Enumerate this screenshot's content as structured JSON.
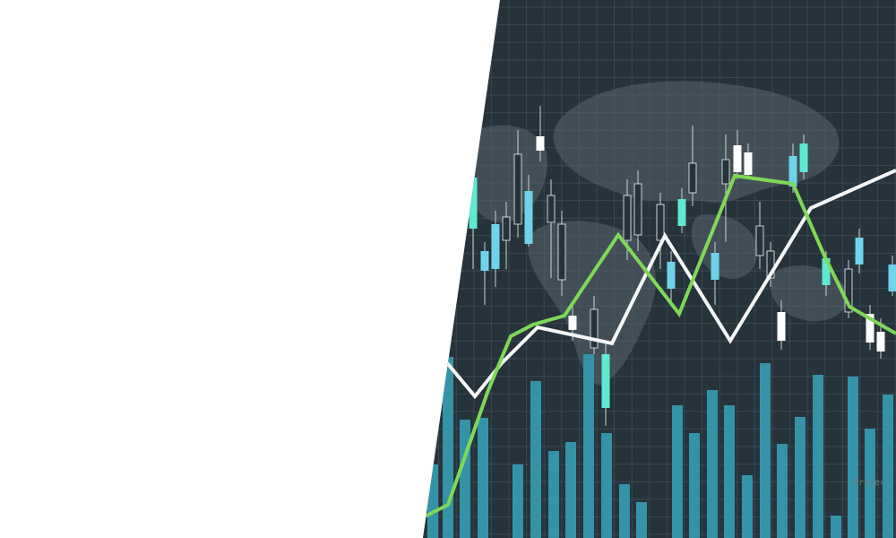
{
  "illustration": {
    "watermark": "Projec"
  }
}
